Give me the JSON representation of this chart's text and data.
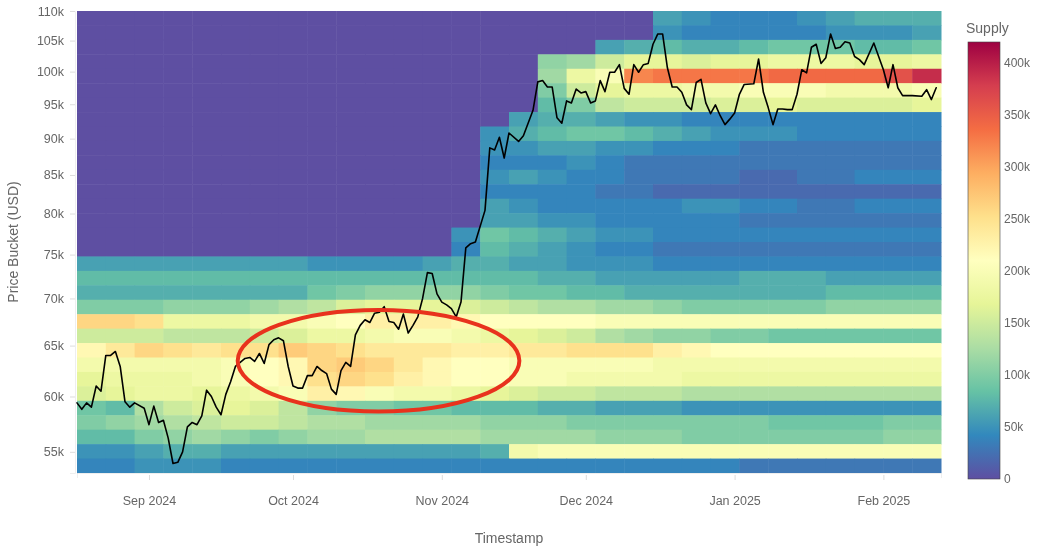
{
  "chart_data": {
    "type": "heatmap",
    "xlabel": "Timestamp",
    "ylabel": "Price Bucket (USD)",
    "clabel": "Supply",
    "log": true,
    "xlim": [
      "2024-08-17",
      "2025-02-13"
    ],
    "xticks": [
      {
        "value": "2024-09-01",
        "label": "Sep 2024"
      },
      {
        "value": "2024-10-01",
        "label": "Oct 2024"
      },
      {
        "value": "2024-11-01",
        "label": "Nov 2024"
      },
      {
        "value": "2024-12-01",
        "label": "Dec 2024"
      },
      {
        "value": "2025-01-01",
        "label": "Jan 2025"
      },
      {
        "value": "2025-02-01",
        "label": "Feb 2025"
      }
    ],
    "ylim": [
      53200,
      110000
    ],
    "yticks": [
      {
        "value": 55000,
        "label": "55k"
      },
      {
        "value": 60000,
        "label": "60k"
      },
      {
        "value": 65000,
        "label": "65k"
      },
      {
        "value": 70000,
        "label": "70k"
      },
      {
        "value": 75000,
        "label": "75k"
      },
      {
        "value": 80000,
        "label": "80k"
      },
      {
        "value": 85000,
        "label": "85k"
      },
      {
        "value": 90000,
        "label": "90k"
      },
      {
        "value": 95000,
        "label": "95k"
      },
      {
        "value": 100000,
        "label": "100k"
      },
      {
        "value": 105000,
        "label": "105k"
      },
      {
        "value": 110000,
        "label": "110k"
      }
    ],
    "clim": [
      0,
      420000
    ],
    "cticks": [
      0,
      {
        "value": 50000,
        "label": "50k"
      },
      {
        "value": 100000,
        "label": "100k"
      },
      {
        "value": 150000,
        "label": "150k"
      },
      {
        "value": 200000,
        "label": "200k"
      },
      {
        "value": 250000,
        "label": "250k"
      },
      {
        "value": 300000,
        "label": "300k"
      },
      {
        "value": 350000,
        "label": "350k"
      },
      {
        "value": 400000,
        "label": "400k"
      }
    ],
    "x": [
      "2024-08-20",
      "2024-08-26",
      "2024-09-01",
      "2024-09-07",
      "2024-09-13",
      "2024-09-19",
      "2024-09-25",
      "2024-10-01",
      "2024-10-07",
      "2024-10-13",
      "2024-10-19",
      "2024-10-25",
      "2024-10-31",
      "2024-11-06",
      "2024-11-12",
      "2024-11-18",
      "2024-11-24",
      "2024-11-30",
      "2024-12-06",
      "2024-12-12",
      "2024-12-18",
      "2024-12-24",
      "2024-12-30",
      "2025-01-05",
      "2025-01-11",
      "2025-01-17",
      "2025-01-23",
      "2025-01-29",
      "2025-02-04",
      "2025-02-10"
    ],
    "cells": [
      [
        0,
        0,
        0,
        0,
        0,
        0,
        0,
        0,
        0,
        0,
        0,
        0,
        0,
        0,
        0,
        0,
        0,
        0,
        0,
        0,
        60000,
        50000,
        40000,
        40000,
        40000,
        50000,
        60000,
        70000,
        70000,
        70000
      ],
      [
        0,
        0,
        0,
        0,
        0,
        0,
        0,
        0,
        0,
        0,
        0,
        0,
        0,
        0,
        0,
        0,
        0,
        0,
        0,
        0,
        50000,
        40000,
        40000,
        40000,
        40000,
        40000,
        50000,
        50000,
        50000,
        60000
      ],
      [
        0,
        0,
        0,
        0,
        0,
        0,
        0,
        0,
        0,
        0,
        0,
        0,
        0,
        0,
        0,
        0,
        0,
        0,
        60000,
        70000,
        80000,
        70000,
        70000,
        80000,
        90000,
        90000,
        90000,
        80000,
        80000,
        90000
      ],
      [
        0,
        0,
        0,
        0,
        0,
        0,
        0,
        0,
        0,
        0,
        0,
        0,
        0,
        0,
        0,
        0,
        110000,
        120000,
        150000,
        170000,
        170000,
        160000,
        170000,
        170000,
        180000,
        180000,
        180000,
        170000,
        170000,
        180000
      ],
      [
        0,
        0,
        0,
        0,
        0,
        0,
        0,
        0,
        0,
        0,
        0,
        0,
        0,
        0,
        0,
        0,
        120000,
        180000,
        200000,
        320000,
        330000,
        330000,
        330000,
        330000,
        340000,
        340000,
        340000,
        340000,
        360000,
        390000
      ],
      [
        0,
        0,
        0,
        0,
        0,
        0,
        0,
        0,
        0,
        0,
        0,
        0,
        0,
        0,
        0,
        0,
        100000,
        150000,
        170000,
        180000,
        180000,
        190000,
        190000,
        200000,
        200000,
        200000,
        190000,
        190000,
        190000,
        200000
      ],
      [
        0,
        0,
        0,
        0,
        0,
        0,
        0,
        0,
        0,
        0,
        0,
        0,
        0,
        0,
        0,
        0,
        80000,
        100000,
        140000,
        150000,
        150000,
        150000,
        160000,
        160000,
        170000,
        160000,
        160000,
        160000,
        160000,
        170000
      ],
      [
        0,
        0,
        0,
        0,
        0,
        0,
        0,
        0,
        0,
        0,
        0,
        0,
        0,
        0,
        0,
        60000,
        70000,
        70000,
        60000,
        50000,
        50000,
        40000,
        40000,
        40000,
        40000,
        40000,
        40000,
        40000,
        40000,
        40000
      ],
      [
        0,
        0,
        0,
        0,
        0,
        0,
        0,
        0,
        0,
        0,
        0,
        0,
        0,
        0,
        50000,
        70000,
        80000,
        90000,
        90000,
        80000,
        70000,
        60000,
        50000,
        50000,
        50000,
        40000,
        40000,
        40000,
        40000,
        40000
      ],
      [
        0,
        0,
        0,
        0,
        0,
        0,
        0,
        0,
        0,
        0,
        0,
        0,
        0,
        0,
        50000,
        50000,
        60000,
        60000,
        50000,
        50000,
        40000,
        40000,
        40000,
        30000,
        30000,
        30000,
        30000,
        30000,
        30000,
        30000
      ],
      [
        0,
        0,
        0,
        0,
        0,
        0,
        0,
        0,
        0,
        0,
        0,
        0,
        0,
        0,
        40000,
        40000,
        40000,
        50000,
        40000,
        30000,
        30000,
        30000,
        30000,
        30000,
        30000,
        30000,
        30000,
        30000,
        30000,
        30000
      ],
      [
        0,
        0,
        0,
        0,
        0,
        0,
        0,
        0,
        0,
        0,
        0,
        0,
        0,
        0,
        50000,
        60000,
        50000,
        40000,
        40000,
        30000,
        30000,
        30000,
        30000,
        20000,
        20000,
        30000,
        30000,
        40000,
        40000,
        40000
      ],
      [
        0,
        0,
        0,
        0,
        0,
        0,
        0,
        0,
        0,
        0,
        0,
        0,
        0,
        0,
        40000,
        40000,
        40000,
        40000,
        30000,
        30000,
        20000,
        20000,
        20000,
        20000,
        20000,
        20000,
        20000,
        20000,
        20000,
        20000
      ],
      [
        0,
        0,
        0,
        0,
        0,
        0,
        0,
        0,
        0,
        0,
        0,
        0,
        0,
        0,
        60000,
        50000,
        40000,
        40000,
        40000,
        40000,
        40000,
        50000,
        50000,
        40000,
        40000,
        30000,
        30000,
        40000,
        40000,
        40000
      ],
      [
        0,
        0,
        0,
        0,
        0,
        0,
        0,
        0,
        0,
        0,
        0,
        0,
        0,
        0,
        60000,
        60000,
        50000,
        50000,
        40000,
        40000,
        40000,
        40000,
        40000,
        30000,
        30000,
        30000,
        30000,
        30000,
        30000,
        30000
      ],
      [
        0,
        0,
        0,
        0,
        0,
        0,
        0,
        0,
        0,
        0,
        0,
        0,
        0,
        50000,
        90000,
        80000,
        70000,
        60000,
        50000,
        50000,
        40000,
        40000,
        40000,
        40000,
        40000,
        40000,
        40000,
        40000,
        40000,
        40000
      ],
      [
        0,
        0,
        0,
        0,
        0,
        0,
        0,
        0,
        0,
        0,
        0,
        0,
        0,
        40000,
        80000,
        70000,
        60000,
        50000,
        40000,
        40000,
        30000,
        30000,
        30000,
        30000,
        30000,
        30000,
        30000,
        30000,
        30000,
        30000
      ],
      [
        60000,
        60000,
        60000,
        60000,
        60000,
        60000,
        60000,
        60000,
        50000,
        50000,
        50000,
        50000,
        60000,
        70000,
        70000,
        60000,
        60000,
        50000,
        50000,
        50000,
        40000,
        40000,
        40000,
        40000,
        40000,
        40000,
        40000,
        40000,
        40000,
        40000
      ],
      [
        80000,
        80000,
        80000,
        80000,
        80000,
        80000,
        80000,
        80000,
        80000,
        80000,
        80000,
        80000,
        80000,
        80000,
        80000,
        80000,
        70000,
        70000,
        60000,
        60000,
        60000,
        60000,
        60000,
        70000,
        70000,
        70000,
        60000,
        60000,
        60000,
        60000
      ],
      [
        70000,
        70000,
        70000,
        70000,
        70000,
        70000,
        70000,
        70000,
        90000,
        100000,
        110000,
        110000,
        110000,
        110000,
        100000,
        90000,
        90000,
        80000,
        80000,
        70000,
        70000,
        70000,
        70000,
        70000,
        70000,
        70000,
        80000,
        80000,
        80000,
        80000
      ],
      [
        100000,
        100000,
        100000,
        110000,
        110000,
        110000,
        120000,
        130000,
        140000,
        160000,
        170000,
        170000,
        170000,
        160000,
        150000,
        140000,
        130000,
        130000,
        120000,
        120000,
        110000,
        100000,
        100000,
        100000,
        100000,
        100000,
        110000,
        110000,
        110000,
        110000
      ],
      [
        260000,
        260000,
        250000,
        180000,
        180000,
        180000,
        190000,
        190000,
        200000,
        210000,
        230000,
        230000,
        230000,
        220000,
        210000,
        210000,
        210000,
        210000,
        200000,
        200000,
        200000,
        200000,
        200000,
        200000,
        200000,
        200000,
        200000,
        200000,
        200000,
        200000
      ],
      [
        150000,
        150000,
        150000,
        140000,
        140000,
        140000,
        150000,
        160000,
        180000,
        180000,
        190000,
        200000,
        200000,
        190000,
        180000,
        170000,
        160000,
        150000,
        130000,
        120000,
        110000,
        110000,
        100000,
        100000,
        90000,
        90000,
        90000,
        90000,
        90000,
        90000
      ],
      [
        220000,
        240000,
        260000,
        250000,
        240000,
        250000,
        250000,
        270000,
        260000,
        250000,
        240000,
        240000,
        240000,
        230000,
        230000,
        240000,
        240000,
        250000,
        250000,
        250000,
        230000,
        220000,
        210000,
        210000,
        210000,
        210000,
        210000,
        210000,
        210000,
        210000
      ],
      [
        190000,
        190000,
        190000,
        190000,
        190000,
        200000,
        210000,
        220000,
        260000,
        270000,
        260000,
        240000,
        220000,
        210000,
        210000,
        200000,
        200000,
        200000,
        200000,
        200000,
        190000,
        190000,
        190000,
        190000,
        190000,
        190000,
        190000,
        190000,
        190000,
        190000
      ],
      [
        170000,
        180000,
        180000,
        180000,
        190000,
        200000,
        210000,
        220000,
        250000,
        260000,
        250000,
        230000,
        220000,
        210000,
        210000,
        200000,
        200000,
        190000,
        190000,
        190000,
        190000,
        180000,
        180000,
        180000,
        180000,
        180000,
        180000,
        180000,
        180000,
        180000
      ],
      [
        160000,
        170000,
        180000,
        180000,
        170000,
        180000,
        190000,
        200000,
        230000,
        220000,
        200000,
        190000,
        190000,
        180000,
        170000,
        160000,
        150000,
        150000,
        140000,
        140000,
        140000,
        130000,
        130000,
        130000,
        130000,
        130000,
        130000,
        130000,
        130000,
        130000
      ],
      [
        90000,
        80000,
        130000,
        150000,
        160000,
        170000,
        160000,
        140000,
        110000,
        100000,
        100000,
        90000,
        90000,
        80000,
        80000,
        80000,
        70000,
        70000,
        60000,
        60000,
        60000,
        50000,
        50000,
        50000,
        50000,
        50000,
        50000,
        50000,
        50000,
        50000
      ],
      [
        100000,
        110000,
        120000,
        130000,
        140000,
        150000,
        150000,
        140000,
        130000,
        130000,
        120000,
        120000,
        120000,
        120000,
        110000,
        110000,
        110000,
        100000,
        100000,
        100000,
        100000,
        100000,
        100000,
        100000,
        90000,
        90000,
        90000,
        90000,
        100000,
        100000
      ],
      [
        80000,
        80000,
        100000,
        110000,
        120000,
        110000,
        100000,
        110000,
        120000,
        120000,
        130000,
        130000,
        130000,
        130000,
        120000,
        120000,
        120000,
        120000,
        110000,
        110000,
        110000,
        100000,
        100000,
        100000,
        100000,
        100000,
        100000,
        100000,
        110000,
        110000
      ],
      [
        50000,
        50000,
        60000,
        70000,
        70000,
        60000,
        60000,
        60000,
        60000,
        60000,
        60000,
        60000,
        60000,
        60000,
        70000,
        190000,
        200000,
        200000,
        200000,
        200000,
        200000,
        200000,
        200000,
        200000,
        200000,
        200000,
        200000,
        200000,
        200000,
        200000
      ],
      [
        40000,
        40000,
        50000,
        50000,
        50000,
        40000,
        40000,
        40000,
        40000,
        40000,
        40000,
        40000,
        40000,
        40000,
        40000,
        40000,
        40000,
        40000,
        40000,
        40000,
        40000,
        40000,
        40000,
        30000,
        30000,
        30000,
        30000,
        30000,
        30000,
        30000
      ]
    ],
    "series": [
      {
        "type": "line",
        "color": "#000000",
        "x": [
          "2024-08-17",
          "2024-08-18",
          "2024-08-19",
          "2024-08-20",
          "2024-08-21",
          "2024-08-22",
          "2024-08-23",
          "2024-08-24",
          "2024-08-25",
          "2024-08-26",
          "2024-08-27",
          "2024-08-28",
          "2024-08-29",
          "2024-08-31",
          "2024-09-01",
          "2024-09-02",
          "2024-09-03",
          "2024-09-04",
          "2024-09-05",
          "2024-09-06",
          "2024-09-07",
          "2024-09-08",
          "2024-09-09",
          "2024-09-10",
          "2024-09-11",
          "2024-09-12",
          "2024-09-13",
          "2024-09-14",
          "2024-09-15",
          "2024-09-16",
          "2024-09-17",
          "2024-09-18",
          "2024-09-19",
          "2024-09-20",
          "2024-09-21",
          "2024-09-22",
          "2024-09-23",
          "2024-09-24",
          "2024-09-25",
          "2024-09-26",
          "2024-09-27",
          "2024-09-28",
          "2024-09-29",
          "2024-09-30",
          "2024-10-01",
          "2024-10-02",
          "2024-10-03",
          "2024-10-04",
          "2024-10-05",
          "2024-10-06",
          "2024-10-07",
          "2024-10-08",
          "2024-10-09",
          "2024-10-10",
          "2024-10-11",
          "2024-10-12",
          "2024-10-13",
          "2024-10-14",
          "2024-10-15",
          "2024-10-16",
          "2024-10-17",
          "2024-10-18",
          "2024-10-19",
          "2024-10-20",
          "2024-10-21",
          "2024-10-22",
          "2024-10-23",
          "2024-10-24",
          "2024-10-25",
          "2024-10-26",
          "2024-10-27",
          "2024-10-28",
          "2024-10-29",
          "2024-10-30",
          "2024-10-31",
          "2024-11-01",
          "2024-11-02",
          "2024-11-03",
          "2024-11-04",
          "2024-11-05",
          "2024-11-06",
          "2024-11-07",
          "2024-11-08",
          "2024-11-10",
          "2024-11-11",
          "2024-11-12",
          "2024-11-13",
          "2024-11-14",
          "2024-11-15",
          "2024-11-17",
          "2024-11-18",
          "2024-11-20",
          "2024-11-21",
          "2024-11-22",
          "2024-11-23",
          "2024-11-24",
          "2024-11-25",
          "2024-11-26",
          "2024-11-27",
          "2024-11-28",
          "2024-11-29",
          "2024-11-30",
          "2024-12-01",
          "2024-12-02",
          "2024-12-03",
          "2024-12-04",
          "2024-12-05",
          "2024-12-06",
          "2024-12-07",
          "2024-12-08",
          "2024-12-09",
          "2024-12-10",
          "2024-12-11",
          "2024-12-12",
          "2024-12-13",
          "2024-12-14",
          "2024-12-15",
          "2024-12-16",
          "2024-12-17",
          "2024-12-18",
          "2024-12-19",
          "2024-12-20",
          "2024-12-21",
          "2024-12-22",
          "2024-12-23",
          "2024-12-24",
          "2024-12-25",
          "2024-12-26",
          "2024-12-27",
          "2024-12-28",
          "2024-12-29",
          "2024-12-30",
          "2024-12-31",
          "2025-01-01",
          "2025-01-02",
          "2025-01-03",
          "2025-01-05",
          "2025-01-06",
          "2025-01-07",
          "2025-01-08",
          "2025-01-09",
          "2025-01-10",
          "2025-01-11",
          "2025-01-12",
          "2025-01-13",
          "2025-01-14",
          "2025-01-15",
          "2025-01-16",
          "2025-01-17",
          "2025-01-18",
          "2025-01-19",
          "2025-01-20",
          "2025-01-21",
          "2025-01-22",
          "2025-01-23",
          "2025-01-24",
          "2025-01-25",
          "2025-01-26",
          "2025-01-27",
          "2025-01-28",
          "2025-01-30",
          "2025-02-01",
          "2025-02-02",
          "2025-02-03",
          "2025-02-04",
          "2025-02-05",
          "2025-02-07",
          "2025-02-09",
          "2025-02-10",
          "2025-02-11",
          "2025-02-12"
        ],
        "values": [
          59400,
          58800,
          59400,
          59000,
          61000,
          60500,
          64000,
          64000,
          64400,
          62900,
          59500,
          59000,
          59400,
          58900,
          57400,
          59100,
          57600,
          57800,
          56200,
          54000,
          54100,
          55000,
          57200,
          57600,
          57400,
          58200,
          60600,
          60000,
          59000,
          58300,
          60200,
          61400,
          62900,
          63300,
          63700,
          63800,
          63400,
          64200,
          63200,
          65100,
          65600,
          65800,
          65500,
          62900,
          61000,
          60800,
          60800,
          62000,
          62000,
          62900,
          62500,
          62200,
          60700,
          60200,
          62500,
          63300,
          62900,
          66100,
          67100,
          67700,
          67400,
          68400,
          68500,
          69100,
          67500,
          67400,
          66700,
          68300,
          66300,
          67100,
          68000,
          70000,
          72900,
          72800,
          70500,
          69600,
          69300,
          68900,
          68000,
          69600,
          75800,
          76300,
          76500,
          80400,
          88700,
          88400,
          90200,
          87300,
          90800,
          89600,
          90400,
          94100,
          98400,
          98600,
          97600,
          97600,
          93000,
          92200,
          95500,
          95200,
          97300,
          96700,
          96900,
          95200,
          95500,
          98600,
          96900,
          99900,
          99900,
          101100,
          97400,
          96500,
          101100,
          99900,
          101100,
          101300,
          104400,
          106100,
          106100,
          100600,
          97600,
          97600,
          96800,
          94900,
          94200,
          98300,
          98800,
          95200,
          93600,
          94900,
          93300,
          92000,
          92800,
          93700,
          96500,
          98000,
          98100,
          102000,
          96800,
          94500,
          92000,
          94300,
          94300,
          94200,
          94200,
          96500,
          100300,
          99800,
          103900,
          104400,
          101300,
          102200,
          106100,
          103700,
          103900,
          104800,
          104600,
          102400,
          101900,
          101100,
          104600,
          100300,
          97500,
          101100,
          97500,
          96300,
          96300,
          96200,
          97200,
          95700,
          97500
        ]
      }
    ]
  }
}
